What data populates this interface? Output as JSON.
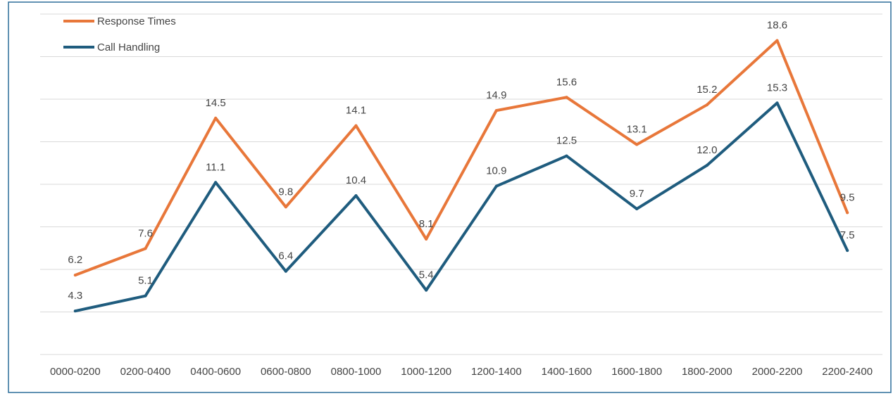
{
  "chart_data": {
    "type": "line",
    "categories": [
      "0000-0200",
      "0200-0400",
      "0400-0600",
      "0600-0800",
      "0800-1000",
      "1000-1200",
      "1200-1400",
      "1400-1600",
      "1600-1800",
      "1800-2000",
      "2000-2200",
      "2200-2400"
    ],
    "series": [
      {
        "name": "Response Times",
        "color": "#E8773A",
        "values": [
          6.2,
          7.6,
          14.5,
          9.8,
          14.1,
          8.1,
          14.9,
          15.6,
          13.1,
          15.2,
          18.6,
          9.5
        ]
      },
      {
        "name": "Call Handling",
        "color": "#1F5C7E",
        "values": [
          4.3,
          5.1,
          11.1,
          6.4,
          10.4,
          5.4,
          10.9,
          12.5,
          9.7,
          12.0,
          15.3,
          7.5
        ]
      }
    ],
    "data_labels": true,
    "grid": "horizontal",
    "legend": "top-left",
    "title": "",
    "xlabel": "",
    "ylabel": ""
  }
}
